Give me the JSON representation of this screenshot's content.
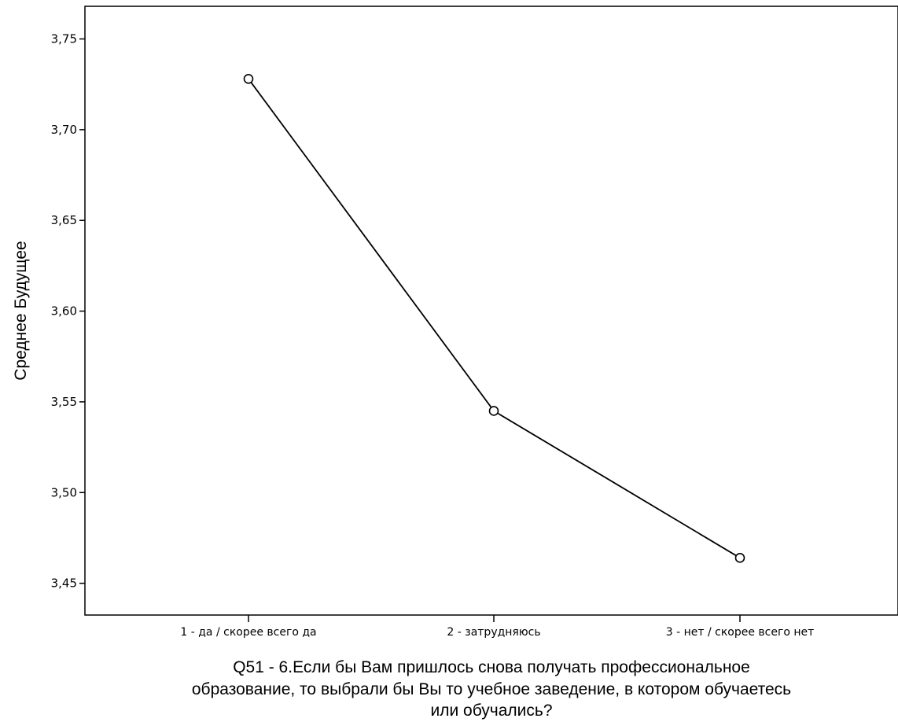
{
  "chart_data": {
    "type": "line",
    "categories": [
      "1 - да / скорее всего да",
      "2 - затрудняюсь",
      "3 - нет / скорее всего нет"
    ],
    "series": [
      {
        "values": [
          3.728,
          3.545,
          3.464
        ]
      }
    ],
    "xlabel_lines": [
      "Q51 - 6.Если бы Вам пришлось снова получать профессиональное",
      "образование, то выбрали бы Вы то учебное заведение, в котором обучаетесь",
      "или обучались?"
    ],
    "ylabel": "Среднее Будущее",
    "ylim": [
      3.4325,
      3.768
    ],
    "yticks": [
      3.45,
      3.5,
      3.55,
      3.6,
      3.65,
      3.7,
      3.75
    ],
    "ytick_labels": [
      "3,45",
      "3,50",
      "3,55",
      "3,60",
      "3,65",
      "3,70",
      "3,75"
    ],
    "grid": false,
    "marker": "open-circle",
    "line_color": "#000000"
  }
}
